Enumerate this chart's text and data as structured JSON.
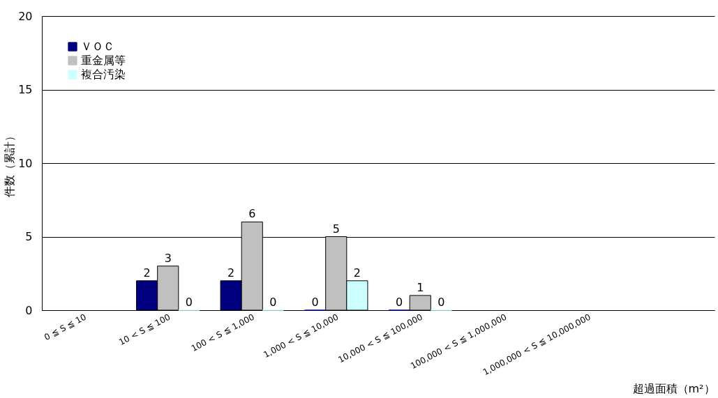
{
  "chart_data": {
    "type": "bar",
    "xlabel": "超過面積（m²）",
    "ylabel": "件数（累計）",
    "categories": [
      "0 ≦ S ≦ 10",
      "10 < S ≦ 100",
      "100 < S ≦ 1,000",
      "1,000 < S ≦ 10,000",
      "10,000 < S ≦ 100,000",
      "100,000 < S ≦ 1,000,000",
      "1,000,000 < S ≦ 10,000,000",
      null
    ],
    "series": [
      {
        "name": "ＶＯＣ",
        "color": "#000080",
        "values": [
          null,
          2,
          2,
          0,
          0,
          null,
          null,
          null
        ]
      },
      {
        "name": "重金属等",
        "color": "#c0c0c0",
        "values": [
          null,
          3,
          6,
          5,
          1,
          null,
          null,
          null
        ]
      },
      {
        "name": "複合汚染",
        "color": "#ccffff",
        "values": [
          null,
          0,
          0,
          2,
          0,
          null,
          null,
          null
        ]
      }
    ],
    "ylim": [
      0,
      20
    ],
    "yticks": [
      0,
      5,
      10,
      15,
      20
    ],
    "grid": "y",
    "legend": "top left",
    "data_labels": true
  }
}
